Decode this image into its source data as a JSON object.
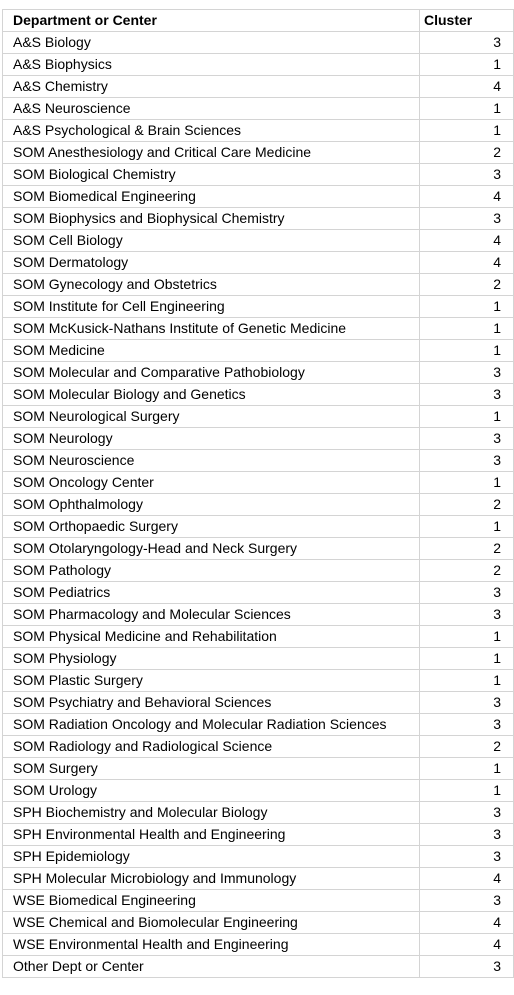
{
  "header": {
    "department": "Department or Center",
    "cluster": "Cluster"
  },
  "rows": [
    {
      "department": "A&S Biology",
      "cluster": "3"
    },
    {
      "department": "A&S Biophysics",
      "cluster": "1"
    },
    {
      "department": "A&S Chemistry",
      "cluster": "4"
    },
    {
      "department": "A&S Neuroscience",
      "cluster": "1"
    },
    {
      "department": "A&S Psychological & Brain Sciences",
      "cluster": "1"
    },
    {
      "department": "SOM Anesthesiology and Critical Care Medicine",
      "cluster": "2"
    },
    {
      "department": "SOM Biological Chemistry",
      "cluster": "3"
    },
    {
      "department": "SOM Biomedical Engineering",
      "cluster": "4"
    },
    {
      "department": "SOM Biophysics and Biophysical Chemistry",
      "cluster": "3"
    },
    {
      "department": "SOM Cell Biology",
      "cluster": "4"
    },
    {
      "department": "SOM Dermatology",
      "cluster": "4"
    },
    {
      "department": "SOM Gynecology and Obstetrics",
      "cluster": "2"
    },
    {
      "department": "SOM Institute for Cell Engineering",
      "cluster": "1"
    },
    {
      "department": "SOM McKusick-Nathans Institute of Genetic Medicine",
      "cluster": "1"
    },
    {
      "department": "SOM Medicine",
      "cluster": "1"
    },
    {
      "department": "SOM Molecular and Comparative Pathobiology",
      "cluster": "3"
    },
    {
      "department": "SOM Molecular Biology and Genetics",
      "cluster": "3"
    },
    {
      "department": "SOM Neurological Surgery",
      "cluster": "1"
    },
    {
      "department": "SOM Neurology",
      "cluster": "3"
    },
    {
      "department": "SOM Neuroscience",
      "cluster": "3"
    },
    {
      "department": "SOM Oncology Center",
      "cluster": "1"
    },
    {
      "department": "SOM Ophthalmology",
      "cluster": "2"
    },
    {
      "department": "SOM Orthopaedic Surgery",
      "cluster": "1"
    },
    {
      "department": "SOM Otolaryngology-Head and Neck Surgery",
      "cluster": "2"
    },
    {
      "department": "SOM Pathology",
      "cluster": "2"
    },
    {
      "department": "SOM Pediatrics",
      "cluster": "3"
    },
    {
      "department": "SOM Pharmacology and Molecular Sciences",
      "cluster": "3"
    },
    {
      "department": "SOM Physical Medicine and Rehabilitation",
      "cluster": "1"
    },
    {
      "department": "SOM Physiology",
      "cluster": "1"
    },
    {
      "department": "SOM Plastic Surgery",
      "cluster": "1"
    },
    {
      "department": "SOM Psychiatry and Behavioral Sciences",
      "cluster": "3"
    },
    {
      "department": "SOM Radiation Oncology and Molecular Radiation Sciences",
      "cluster": "3"
    },
    {
      "department": "SOM Radiology and Radiological Science",
      "cluster": "2"
    },
    {
      "department": "SOM Surgery",
      "cluster": "1"
    },
    {
      "department": "SOM Urology",
      "cluster": "1"
    },
    {
      "department": "SPH Biochemistry and Molecular Biology",
      "cluster": "3"
    },
    {
      "department": "SPH Environmental Health and Engineering",
      "cluster": "3"
    },
    {
      "department": "SPH Epidemiology",
      "cluster": "3"
    },
    {
      "department": "SPH Molecular Microbiology and Immunology",
      "cluster": "4"
    },
    {
      "department": "WSE Biomedical Engineering",
      "cluster": "3"
    },
    {
      "department": "WSE Chemical and Biomolecular Engineering",
      "cluster": "4"
    },
    {
      "department": "WSE Environmental Health and Engineering",
      "cluster": "4"
    },
    {
      "department": "Other Dept or Center",
      "cluster": "3"
    }
  ]
}
